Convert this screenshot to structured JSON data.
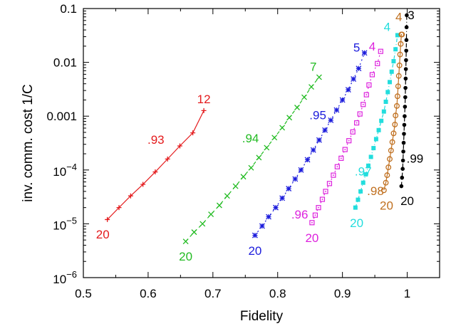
{
  "chart_data": {
    "type": "line",
    "xlabel": "Fidelity",
    "ylabel": "inv. comm. cost 1/C",
    "xlim": [
      0.5,
      1.05
    ],
    "ylim": [
      1e-06,
      0.1
    ],
    "yscale": "log",
    "grid": false,
    "legend": "none",
    "xticks": [
      {
        "v": 0.5,
        "label": "0.5"
      },
      {
        "v": 0.6,
        "label": "0.6"
      },
      {
        "v": 0.7,
        "label": "0.7"
      },
      {
        "v": 0.8,
        "label": "0.8"
      },
      {
        "v": 0.9,
        "label": "0.9"
      },
      {
        "v": 1.0,
        "label": "1"
      }
    ],
    "yticks": [
      {
        "v": 1e-06,
        "base": "10",
        "exp": "−6"
      },
      {
        "v": 1e-05,
        "base": "10",
        "exp": "−5"
      },
      {
        "v": 0.0001,
        "base": "10",
        "exp": "−4"
      },
      {
        "v": 0.001,
        "label": "0.001"
      },
      {
        "v": 0.01,
        "label": "0.01"
      },
      {
        "v": 0.1,
        "label": "0.1"
      }
    ],
    "series": [
      {
        "color": "#e41a1c",
        "marker": "plus",
        "dash": "",
        "x": [
          0.537,
          0.555,
          0.573,
          0.592,
          0.611,
          0.63,
          0.649,
          0.669,
          0.686
        ],
        "y": [
          1.2e-05,
          2e-05,
          3.3e-05,
          5.4e-05,
          9.2e-05,
          0.00016,
          0.00028,
          0.00049,
          0.00127
        ]
      },
      {
        "color": "#22bb22",
        "marker": "x",
        "dash": "5,4",
        "x": [
          0.658,
          0.671,
          0.684,
          0.697,
          0.71,
          0.722,
          0.735,
          0.747,
          0.759,
          0.771,
          0.783,
          0.795,
          0.807,
          0.818,
          0.83,
          0.841,
          0.852,
          0.864
        ],
        "y": [
          4.7e-06,
          7e-06,
          1e-05,
          1.5e-05,
          2.2e-05,
          3.3e-05,
          5e-05,
          7.5e-05,
          0.00011,
          0.00017,
          0.00026,
          0.0004,
          0.00061,
          0.00094,
          0.00145,
          0.00225,
          0.0035,
          0.0053
        ]
      },
      {
        "color": "#1c1cdc",
        "marker": "star",
        "dash": "2,4",
        "x": [
          0.765,
          0.776,
          0.786,
          0.797,
          0.807,
          0.817,
          0.827,
          0.836,
          0.846,
          0.855,
          0.864,
          0.873,
          0.882,
          0.891,
          0.9,
          0.909,
          0.917,
          0.925,
          0.934
        ],
        "y": [
          6.1e-06,
          9.1e-06,
          1.35e-05,
          2e-05,
          3e-05,
          4.5e-05,
          6.8e-05,
          0.0001,
          0.000155,
          0.000235,
          0.00036,
          0.00055,
          0.00084,
          0.0013,
          0.002,
          0.0031,
          0.0049,
          0.0077,
          0.015
        ]
      },
      {
        "color": "#dd22dd",
        "marker": "boxdot",
        "dash": "2,4",
        "x": [
          0.853,
          0.858,
          0.863,
          0.869,
          0.874,
          0.88,
          0.886,
          0.892,
          0.898,
          0.904,
          0.91,
          0.916,
          0.922,
          0.927,
          0.932,
          0.937,
          0.941,
          0.946,
          0.954,
          0.959
        ],
        "y": [
          1.05e-05,
          1.45e-05,
          2e-05,
          2.85e-05,
          4e-05,
          5.6e-05,
          8e-05,
          0.000115,
          0.000165,
          0.00024,
          0.00035,
          0.00051,
          0.00075,
          0.0011,
          0.00165,
          0.0025,
          0.0038,
          0.0059,
          0.0095,
          0.016
        ]
      },
      {
        "color": "#22dddd",
        "marker": "fbox",
        "dash": "5,3,1,3",
        "x": [
          0.92,
          0.924,
          0.928,
          0.932,
          0.936,
          0.94,
          0.944,
          0.948,
          0.952,
          0.956,
          0.96,
          0.964,
          0.967,
          0.97,
          0.973,
          0.976,
          0.979,
          0.982,
          0.985
        ],
        "y": [
          2e-05,
          2.8e-05,
          4e-05,
          5.8e-05,
          8.3e-05,
          0.00012,
          0.000175,
          0.000255,
          0.000375,
          0.00055,
          0.00082,
          0.00122,
          0.00185,
          0.0028,
          0.0043,
          0.0067,
          0.0105,
          0.0175,
          0.032
        ]
      },
      {
        "color": "#c07020",
        "marker": "circle",
        "dash": "",
        "x": [
          0.964,
          0.967,
          0.969,
          0.971,
          0.973,
          0.975,
          0.977,
          0.979,
          0.981,
          0.982,
          0.984,
          0.985,
          0.986,
          0.987,
          0.988,
          0.989,
          0.99,
          0.991,
          0.992
        ],
        "y": [
          4.2e-05,
          5.8e-05,
          8e-05,
          0.000112,
          0.00016,
          0.00023,
          0.00033,
          0.00048,
          0.0007,
          0.00103,
          0.00155,
          0.00235,
          0.0036,
          0.0056,
          0.0088,
          0.014,
          0.022,
          0.033,
          0.033
        ]
      },
      {
        "color": "#000000",
        "marker": "dot",
        "dash": "6,3,1,3",
        "x": [
          0.991,
          0.992,
          0.993,
          0.9935,
          0.994,
          0.9945,
          0.995,
          0.9955,
          0.996,
          0.9965,
          0.997,
          0.9973,
          0.9976,
          0.9979,
          0.9982,
          0.9985,
          0.9988,
          0.999,
          0.9993
        ],
        "y": [
          5e-05,
          7.2e-05,
          0.000105,
          0.00015,
          0.00022,
          0.00032,
          0.00047,
          0.00069,
          0.001,
          0.0015,
          0.00225,
          0.00335,
          0.005,
          0.0075,
          0.011,
          0.0165,
          0.026,
          0.045,
          0.075
        ]
      }
    ],
    "annotations": [
      {
        "text": "12",
        "x": 0.686,
        "y": 0.0021,
        "color": "#e41a1c"
      },
      {
        "text": ".93",
        "x": 0.612,
        "y": 0.00037,
        "color": "#e41a1c"
      },
      {
        "text": "20",
        "x": 0.53,
        "y": 6.4e-06,
        "color": "#e41a1c"
      },
      {
        "text": "7",
        "x": 0.855,
        "y": 0.0083,
        "color": "#22bb22"
      },
      {
        "text": ".94",
        "x": 0.758,
        "y": 0.00039,
        "color": "#22bb22"
      },
      {
        "text": "20",
        "x": 0.658,
        "y": 2.5e-06,
        "color": "#22bb22"
      },
      {
        "text": "5",
        "x": 0.922,
        "y": 0.019,
        "color": "#1c1cdc"
      },
      {
        "text": ".95",
        "x": 0.862,
        "y": 0.00105,
        "color": "#1c1cdc"
      },
      {
        "text": "20",
        "x": 0.765,
        "y": 3.2e-06,
        "color": "#1c1cdc"
      },
      {
        "text": "4",
        "x": 0.946,
        "y": 0.02,
        "color": "#dd22dd"
      },
      {
        "text": ".96",
        "x": 0.834,
        "y": 1.5e-05,
        "color": "#dd22dd"
      },
      {
        "text": "20",
        "x": 0.853,
        "y": 5.5e-06,
        "color": "#dd22dd"
      },
      {
        "text": "4",
        "x": 0.969,
        "y": 0.046,
        "color": "#22dddd"
      },
      {
        "text": ".97",
        "x": 0.932,
        "y": 9.5e-05,
        "color": "#22dddd"
      },
      {
        "text": "20",
        "x": 0.922,
        "y": 1.05e-05,
        "color": "#22dddd"
      },
      {
        "text": "4",
        "x": 0.987,
        "y": 0.07,
        "color": "#c07020"
      },
      {
        "text": ".98",
        "x": 0.951,
        "y": 4.1e-05,
        "color": "#c07020"
      },
      {
        "text": "20",
        "x": 0.968,
        "y": 2.2e-05,
        "color": "#c07020"
      },
      {
        "text": "3",
        "x": 1.006,
        "y": 0.076,
        "color": "#000000"
      },
      {
        "text": ".99",
        "x": 1.012,
        "y": 0.000165,
        "color": "#000000"
      },
      {
        "text": "20",
        "x": 1.0,
        "y": 2.7e-05,
        "color": "#000000"
      }
    ]
  }
}
